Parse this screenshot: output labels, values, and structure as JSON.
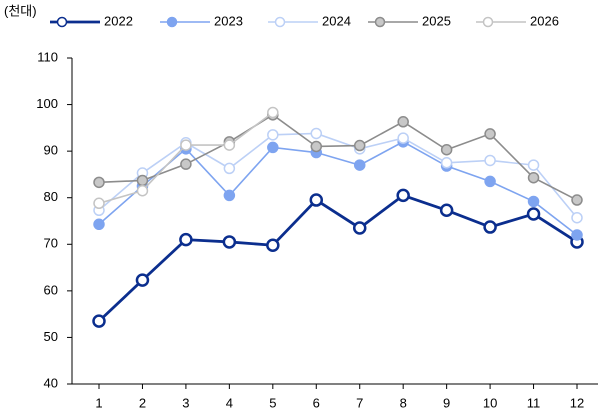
{
  "chart_data": {
    "type": "line",
    "unit_label": "(천대)",
    "categories": [
      "1",
      "2",
      "3",
      "4",
      "5",
      "6",
      "7",
      "8",
      "9",
      "10",
      "11",
      "12"
    ],
    "series": [
      {
        "name": "2022",
        "color": "#0b2e8e",
        "marker_fill": "#ffffff",
        "values": [
          53.5,
          62.3,
          71.0,
          70.5,
          69.8,
          79.5,
          73.5,
          80.5,
          77.3,
          73.7,
          76.5,
          70.5
        ]
      },
      {
        "name": "2023",
        "color": "#7ea4f0",
        "marker_fill": "#7ea4f0",
        "values": [
          74.3,
          82.5,
          90.5,
          80.5,
          90.8,
          89.7,
          87.0,
          92.0,
          86.8,
          83.5,
          79.2,
          72.0
        ]
      },
      {
        "name": "2024",
        "color": "#bcd0f6",
        "marker_fill": "#ffffff",
        "values": [
          77.3,
          85.3,
          91.8,
          86.3,
          93.5,
          93.8,
          90.5,
          92.8,
          87.5,
          88.0,
          87.0,
          75.7
        ]
      },
      {
        "name": "2025",
        "color": "#8c8c8c",
        "marker_fill": "#c8c8c8",
        "values": [
          83.3,
          83.7,
          87.2,
          92.0,
          97.8,
          91.0,
          91.2,
          96.3,
          90.3,
          93.7,
          84.3,
          79.5
        ]
      },
      {
        "name": "2026",
        "color": "#c4c4c4",
        "marker_fill": "#ffffff",
        "values": [
          78.8,
          81.5,
          91.3,
          91.3,
          98.3,
          null,
          null,
          null,
          null,
          null,
          null,
          null
        ]
      }
    ],
    "ylim": [
      40,
      110
    ],
    "yticks": [
      40,
      50,
      60,
      70,
      80,
      90,
      100,
      110
    ]
  }
}
